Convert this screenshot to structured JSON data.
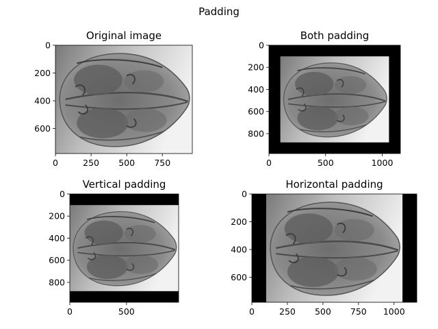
{
  "figure": {
    "title": "Padding"
  },
  "chart_data": [
    {
      "type": "image",
      "title": "Original image",
      "xlim": [
        0,
        960
      ],
      "ylim": [
        780,
        0
      ],
      "xticks": [
        0,
        250,
        500,
        750
      ],
      "yticks": [
        0,
        200,
        400,
        600
      ],
      "image_extent": {
        "x": [
          0,
          960
        ],
        "y": [
          0,
          780
        ]
      },
      "padding": "none"
    },
    {
      "type": "image",
      "title": "Both padding",
      "xlim": [
        0,
        1160
      ],
      "ylim": [
        980,
        0
      ],
      "xticks": [
        0,
        500,
        1000
      ],
      "yticks": [
        0,
        200,
        400,
        600,
        800
      ],
      "image_extent": {
        "x": [
          100,
          1060
        ],
        "y": [
          100,
          880
        ]
      },
      "padding": "both"
    },
    {
      "type": "image",
      "title": "Vertical padding",
      "xlim": [
        0,
        960
      ],
      "ylim": [
        980,
        0
      ],
      "xticks": [
        0,
        500
      ],
      "yticks": [
        0,
        200,
        400,
        600,
        800
      ],
      "image_extent": {
        "x": [
          0,
          960
        ],
        "y": [
          100,
          880
        ]
      },
      "padding": "vertical"
    },
    {
      "type": "image",
      "title": "Horizontal padding",
      "xlim": [
        0,
        1160
      ],
      "ylim": [
        780,
        0
      ],
      "xticks": [
        0,
        250,
        500,
        750,
        1000
      ],
      "yticks": [
        0,
        200,
        400,
        600
      ],
      "image_extent": {
        "x": [
          100,
          1060
        ],
        "y": [
          0,
          780
        ]
      },
      "padding": "horizontal"
    }
  ]
}
